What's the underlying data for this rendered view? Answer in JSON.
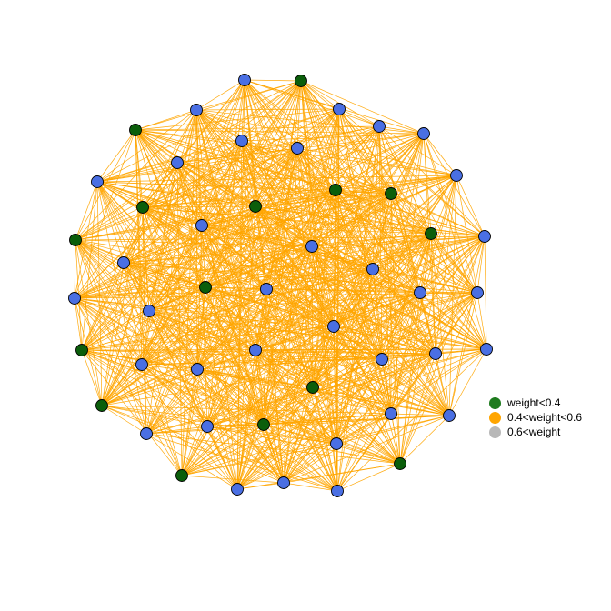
{
  "legend": {
    "items": [
      {
        "label": "weight<0.4",
        "color": "#1e7b1e"
      },
      {
        "label": "0.4<weight<0.6",
        "color": "#ffa500"
      },
      {
        "label": "0.6<weight",
        "color": "#b8b8b8"
      }
    ]
  },
  "colors": {
    "edge": "#ffa500",
    "node_green": "#0b5e0b",
    "node_blue": "#4a6fe3",
    "node_stroke": "#000000"
  }
}
